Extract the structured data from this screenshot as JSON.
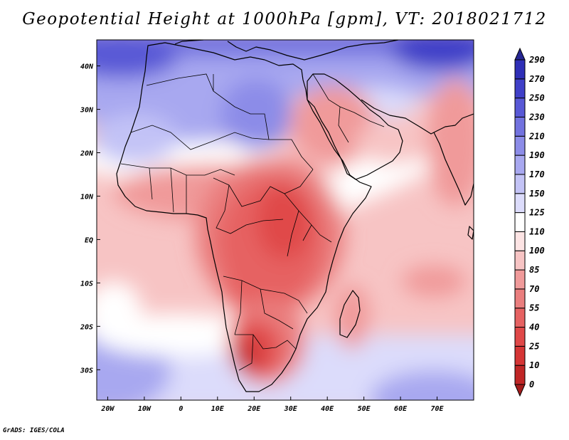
{
  "title": "Geopotential Height at 1000hPa [gpm], VT: 2018021712",
  "credit": "GrADS: IGES/COLA",
  "chart_data": {
    "type": "heatmap",
    "title": "Geopotential Height at 1000hPa [gpm], VT: 2018021712",
    "variable": "Geopotential Height",
    "level": "1000hPa",
    "units": "gpm",
    "valid_time": "2018021712",
    "xlim": [
      -23,
      80
    ],
    "ylim": [
      -37,
      46
    ],
    "x_ticks": [
      {
        "value": -20,
        "label": "20W"
      },
      {
        "value": -10,
        "label": "10W"
      },
      {
        "value": 0,
        "label": "0"
      },
      {
        "value": 10,
        "label": "10E"
      },
      {
        "value": 20,
        "label": "20E"
      },
      {
        "value": 30,
        "label": "30E"
      },
      {
        "value": 40,
        "label": "40E"
      },
      {
        "value": 50,
        "label": "50E"
      },
      {
        "value": 60,
        "label": "60E"
      },
      {
        "value": 70,
        "label": "70E"
      }
    ],
    "y_ticks": [
      {
        "value": 40,
        "label": "40N"
      },
      {
        "value": 30,
        "label": "30N"
      },
      {
        "value": 20,
        "label": "20N"
      },
      {
        "value": 10,
        "label": "10N"
      },
      {
        "value": 0,
        "label": "EQ"
      },
      {
        "value": -10,
        "label": "10S"
      },
      {
        "value": -20,
        "label": "20S"
      },
      {
        "value": -30,
        "label": "30S"
      }
    ],
    "levels": [
      0,
      10,
      25,
      40,
      55,
      70,
      85,
      100,
      110,
      125,
      150,
      170,
      190,
      210,
      230,
      250,
      270,
      290
    ],
    "colors": [
      "#a51c1c",
      "#c02626",
      "#d53535",
      "#e04848",
      "#e66262",
      "#ea7e7e",
      "#f09a9a",
      "#f7c4c4",
      "#fde4e4",
      "#ffffff",
      "#dcdcfb",
      "#c3c3f6",
      "#a8a8f0",
      "#8c8ce8",
      "#7272df",
      "#5858d6",
      "#4040c8",
      "#2f2fb7",
      "#262693"
    ]
  }
}
